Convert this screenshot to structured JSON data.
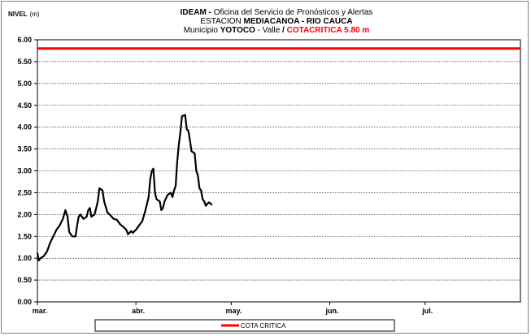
{
  "chart_data": {
    "type": "line",
    "yaxis_label_bold": "NIVEL",
    "yaxis_label_unit": "(m)",
    "title_lines": [
      {
        "bold": "IDEAM -",
        "normal": " Oficina del Servicio de Pronósticos y Alertas"
      },
      {
        "normal": "ESTACION ",
        "bold": "MEDIACANOA - RIO CAUCA"
      },
      {
        "normal": "Municipio ",
        "bold": "YOTOCO",
        "normal2": " - Valle ",
        "slash": "/",
        "red": " COTACRITICA  5.80 m"
      }
    ],
    "ylim": [
      0,
      6
    ],
    "yticks": [
      "0.00",
      "0.50",
      "1.00",
      "1.50",
      "2.00",
      "2.50",
      "3.00",
      "3.50",
      "4.00",
      "4.50",
      "5.00",
      "5.50",
      "6.00"
    ],
    "xlim": [
      0,
      152
    ],
    "xticks": [
      {
        "label": "mar.",
        "day": 0
      },
      {
        "label": "abr.",
        "day": 31
      },
      {
        "label": "may.",
        "day": 61
      },
      {
        "label": "jun.",
        "day": 92
      },
      {
        "label": "jul.",
        "day": 122
      }
    ],
    "grid": true,
    "critical_level": {
      "name": "COTA CRITICA",
      "value": 5.8,
      "color": "#ff0000"
    },
    "legend": {
      "position": "bottom",
      "entries": [
        "COTA CRITICA"
      ]
    },
    "series": [
      {
        "color": "#000000",
        "points": [
          [
            0,
            1.12
          ],
          [
            0.4,
            0.95
          ],
          [
            1,
            1.0
          ],
          [
            2,
            1.05
          ],
          [
            3,
            1.15
          ],
          [
            4,
            1.35
          ],
          [
            5,
            1.5
          ],
          [
            6,
            1.65
          ],
          [
            7,
            1.75
          ],
          [
            8,
            1.9
          ],
          [
            8.8,
            2.1
          ],
          [
            9.5,
            1.95
          ],
          [
            10,
            1.6
          ],
          [
            11,
            1.5
          ],
          [
            12,
            1.5
          ],
          [
            12.5,
            1.75
          ],
          [
            13,
            1.95
          ],
          [
            13.5,
            2.0
          ],
          [
            14.5,
            1.9
          ],
          [
            15.5,
            1.95
          ],
          [
            16,
            2.1
          ],
          [
            16.5,
            2.15
          ],
          [
            17,
            1.95
          ],
          [
            18,
            2.0
          ],
          [
            19,
            2.3
          ],
          [
            19.5,
            2.6
          ],
          [
            20.5,
            2.55
          ],
          [
            21,
            2.3
          ],
          [
            22,
            2.05
          ],
          [
            23,
            1.98
          ],
          [
            24,
            1.9
          ],
          [
            25,
            1.88
          ],
          [
            26,
            1.78
          ],
          [
            27,
            1.72
          ],
          [
            28,
            1.65
          ],
          [
            28.5,
            1.55
          ],
          [
            29.5,
            1.62
          ],
          [
            30,
            1.58
          ],
          [
            31,
            1.65
          ],
          [
            32,
            1.75
          ],
          [
            33,
            1.85
          ],
          [
            34,
            2.1
          ],
          [
            35,
            2.4
          ],
          [
            35.5,
            2.8
          ],
          [
            36,
            3.0
          ],
          [
            36.5,
            3.05
          ],
          [
            37,
            2.5
          ],
          [
            37.5,
            2.35
          ],
          [
            38.5,
            2.3
          ],
          [
            39,
            2.1
          ],
          [
            39.5,
            2.15
          ],
          [
            40,
            2.3
          ],
          [
            41,
            2.45
          ],
          [
            42,
            2.5
          ],
          [
            42.5,
            2.4
          ],
          [
            43,
            2.55
          ],
          [
            43.5,
            2.65
          ],
          [
            44,
            3.2
          ],
          [
            44.5,
            3.6
          ],
          [
            45,
            3.9
          ],
          [
            45.5,
            4.25
          ],
          [
            46.5,
            4.28
          ],
          [
            47,
            3.95
          ],
          [
            47.5,
            3.92
          ],
          [
            48,
            3.7
          ],
          [
            48.5,
            3.45
          ],
          [
            49.5,
            3.4
          ],
          [
            50,
            3.0
          ],
          [
            50.5,
            2.9
          ],
          [
            51,
            2.6
          ],
          [
            51.5,
            2.55
          ],
          [
            52,
            2.35
          ],
          [
            52.5,
            2.3
          ],
          [
            53,
            2.2
          ],
          [
            53.5,
            2.25
          ],
          [
            54,
            2.28
          ],
          [
            54.5,
            2.25
          ],
          [
            55,
            2.22
          ]
        ]
      }
    ]
  }
}
